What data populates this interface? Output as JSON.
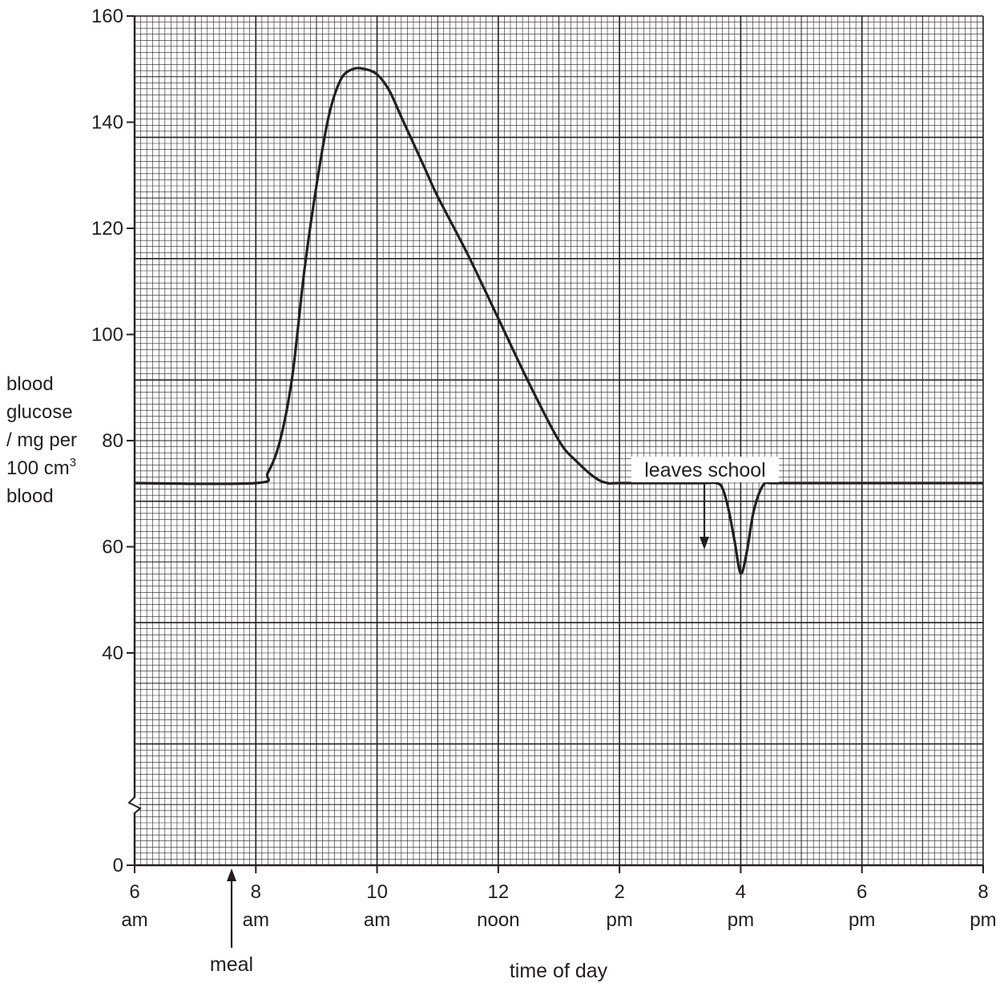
{
  "chart_data": {
    "type": "line",
    "xlabel": "time of day",
    "ylabel": [
      "blood",
      "glucose",
      "/ mg per",
      "100 cm",
      "blood"
    ],
    "ylabel_superscript": "3",
    "xlim": [
      6,
      20
    ],
    "ylim": [
      0,
      160
    ],
    "y_axis_break": true,
    "grid": true,
    "x_ticks": [
      {
        "value": 6,
        "line1": "6",
        "line2": "am"
      },
      {
        "value": 8,
        "line1": "8",
        "line2": "am"
      },
      {
        "value": 10,
        "line1": "10",
        "line2": "am"
      },
      {
        "value": 12,
        "line1": "12",
        "line2": "noon"
      },
      {
        "value": 14,
        "line1": "2",
        "line2": "pm"
      },
      {
        "value": 16,
        "line1": "4",
        "line2": "pm"
      },
      {
        "value": 18,
        "line1": "6",
        "line2": "pm"
      },
      {
        "value": 20,
        "line1": "8",
        "line2": "pm"
      }
    ],
    "y_ticks": [
      0,
      40,
      60,
      80,
      100,
      120,
      140,
      160
    ],
    "series": [
      {
        "x": [
          6,
          8,
          8.2,
          8.4,
          8.6,
          8.8,
          9.0,
          9.2,
          9.4,
          9.6,
          9.8,
          10.0,
          10.2,
          10.4,
          10.6,
          10.8,
          11.0,
          11.5,
          12.0,
          12.5,
          13.0,
          13.3,
          13.6,
          13.8,
          14.0,
          15.0,
          15.4,
          15.6,
          15.7,
          15.8,
          15.9,
          16.0,
          16.1,
          16.2,
          16.3,
          16.4,
          16.5,
          17.0,
          20.0
        ],
        "y": [
          72,
          72,
          74,
          80,
          92,
          112,
          128,
          141,
          148,
          150,
          150,
          149,
          146,
          141,
          136,
          131,
          126,
          115,
          103,
          91,
          80,
          76,
          73,
          72,
          72,
          72,
          72,
          72,
          71,
          67,
          61,
          55,
          59,
          66,
          70,
          72,
          72,
          72,
          72
        ]
      }
    ],
    "annotations": [
      {
        "text": "meal",
        "x": 7.6,
        "arrow": "up"
      },
      {
        "text": "leaves school",
        "x": 15.4,
        "arrow": "down"
      }
    ]
  }
}
